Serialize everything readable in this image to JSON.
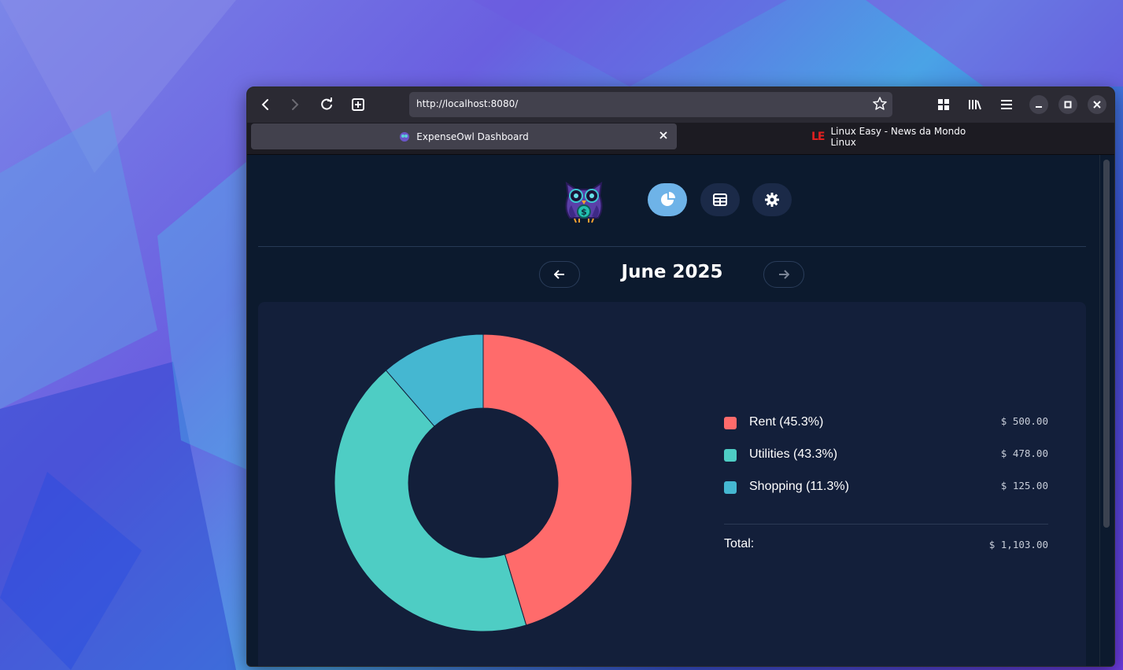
{
  "browser": {
    "url": "http://localhost:8080/",
    "tabs": [
      {
        "title": "ExpenseOwl Dashboard",
        "active": true
      },
      {
        "title": "Linux Easy - News da Mondo Linux",
        "active": false
      }
    ],
    "tab_badge": "LE"
  },
  "app": {
    "nav": [
      {
        "name": "dashboard",
        "icon": "pie-chart-icon",
        "active": true
      },
      {
        "name": "table",
        "icon": "table-icon",
        "active": false
      },
      {
        "name": "settings",
        "icon": "gear-icon",
        "active": false
      }
    ],
    "month": "June 2025"
  },
  "chart_data": {
    "type": "pie",
    "style": "donut",
    "slices": [
      {
        "label": "Rent (45.3%)",
        "value": 500.0,
        "amount": "$ 500.00",
        "color": "#ff6b6b"
      },
      {
        "label": "Utilities (43.3%)",
        "value": 478.0,
        "amount": "$ 478.00",
        "color": "#4ecdc4"
      },
      {
        "label": "Shopping (11.3%)",
        "value": 125.0,
        "amount": "$ 125.00",
        "color": "#45b7d1"
      }
    ],
    "total_label": "Total:",
    "total_amount": "$ 1,103.00"
  }
}
